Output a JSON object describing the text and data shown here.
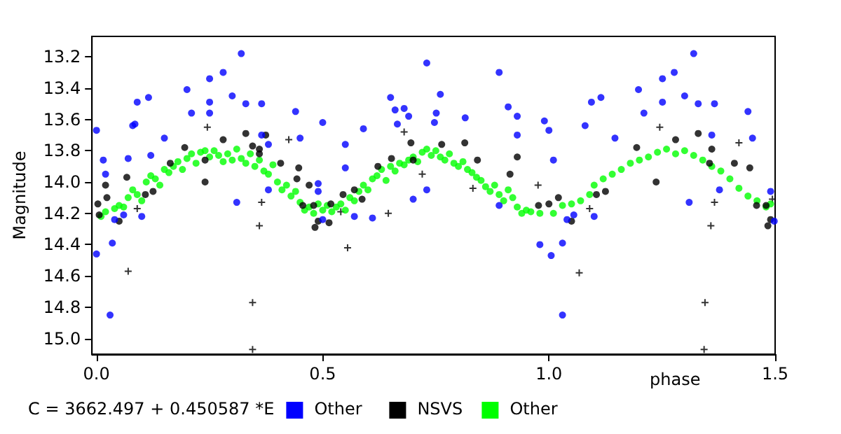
{
  "chart_data": {
    "type": "scatter",
    "xlabel": "phase",
    "ylabel": "Magnitude",
    "annotations": [
      "C = 3662.497 + 0.450587 *E"
    ],
    "xlim": [
      -0.01,
      1.5
    ],
    "ylim": [
      15.1,
      13.07
    ],
    "xticks": [
      {
        "value": 0,
        "label": "0.0"
      },
      {
        "value": 0.5,
        "label": "0.5"
      },
      {
        "value": 1,
        "label": "1.0"
      },
      {
        "value": 1.5,
        "label": "1.5"
      }
    ],
    "yticks": [
      {
        "value": 13.2,
        "label": "13.2"
      },
      {
        "value": 13.4,
        "label": "13.4"
      },
      {
        "value": 13.6,
        "label": "13.6"
      },
      {
        "value": 13.8,
        "label": "13.8"
      },
      {
        "value": 14.0,
        "label": "14.0"
      },
      {
        "value": 14.2,
        "label": "14.2"
      },
      {
        "value": 14.4,
        "label": "14.4"
      },
      {
        "value": 14.6,
        "label": "14.6"
      },
      {
        "value": 14.8,
        "label": "14.8"
      },
      {
        "value": 15.0,
        "label": "15.0"
      }
    ],
    "grid": false,
    "legend": "bottom",
    "marker": "circle",
    "series": [
      {
        "name": "Other",
        "color": "#0000ff",
        "x": [
          0.0,
          0.0,
          0.015,
          0.02,
          0.03,
          0.035,
          0.04,
          0.06,
          0.07,
          0.08,
          0.085,
          0.09,
          0.1,
          0.115,
          0.12,
          0.15,
          0.2,
          0.21,
          0.25,
          0.25,
          0.25,
          0.28,
          0.3,
          0.32,
          0.31,
          0.33,
          0.365,
          0.365,
          0.38,
          0.38,
          0.44,
          0.45,
          0.5,
          0.49,
          0.49,
          0.5,
          0.55,
          0.55,
          0.57,
          0.61,
          0.59,
          0.65,
          0.66,
          0.665,
          0.68,
          0.69,
          0.7,
          0.73,
          0.73,
          0.751,
          0.747,
          0.76,
          0.815,
          0.89,
          0.91,
          0.93,
          0.93,
          0.89,
          0.98,
          0.99,
          1.0,
          1.005,
          1.01,
          1.03,
          1.03,
          1.04,
          1.055,
          1.094,
          1.115,
          1.08,
          1.1,
          1.146,
          1.198,
          1.21,
          1.251,
          1.251,
          1.277,
          1.3,
          1.32,
          1.31,
          1.33,
          1.366,
          1.36,
          1.377,
          1.44,
          1.45,
          1.49,
          1.498
        ],
        "values": [
          13.67,
          14.46,
          13.86,
          13.95,
          14.85,
          14.39,
          14.24,
          14.21,
          13.85,
          13.64,
          13.63,
          13.49,
          14.22,
          13.46,
          13.83,
          13.72,
          13.41,
          13.56,
          13.34,
          13.49,
          13.56,
          13.3,
          13.45,
          13.18,
          14.13,
          13.5,
          13.5,
          13.7,
          13.76,
          14.05,
          13.55,
          13.72,
          13.62,
          14.01,
          14.06,
          14.24,
          13.76,
          13.91,
          14.22,
          14.23,
          13.66,
          13.46,
          13.54,
          13.63,
          13.53,
          13.58,
          14.11,
          13.24,
          14.05,
          13.56,
          13.62,
          13.44,
          13.59,
          13.3,
          13.52,
          13.58,
          13.7,
          14.15,
          14.4,
          13.61,
          13.67,
          14.47,
          13.86,
          14.39,
          14.85,
          14.24,
          14.21,
          13.49,
          13.46,
          13.64,
          14.22,
          13.72,
          13.41,
          13.56,
          13.34,
          13.49,
          13.3,
          13.45,
          13.18,
          14.13,
          13.5,
          13.5,
          13.7,
          14.05,
          13.55,
          13.72,
          14.06,
          14.25
        ]
      },
      {
        "name": "NSVS",
        "color": "#000000",
        "x": [
          0.003,
          0.006,
          0.023,
          0.02,
          0.05,
          0.067,
          0.108,
          0.125,
          0.163,
          0.195,
          0.24,
          0.24,
          0.28,
          0.33,
          0.345,
          0.36,
          0.36,
          0.374,
          0.407,
          0.447,
          0.443,
          0.456,
          0.47,
          0.48,
          0.483,
          0.49,
          0.514,
          0.518,
          0.545,
          0.57,
          0.587,
          0.622,
          0.652,
          0.695,
          0.7,
          0.763,
          0.814,
          0.842,
          0.914,
          0.93,
          0.977,
          1.0,
          1.021,
          1.05,
          1.105,
          1.125,
          1.194,
          1.237,
          1.28,
          1.33,
          1.36,
          1.355,
          1.41,
          1.444,
          1.459,
          1.48,
          1.484,
          1.49
        ],
        "values": [
          14.14,
          14.21,
          14.1,
          14.02,
          14.25,
          13.97,
          14.08,
          14.06,
          13.88,
          13.78,
          14.0,
          13.86,
          13.73,
          13.69,
          13.77,
          13.79,
          13.82,
          13.7,
          13.88,
          13.91,
          13.98,
          14.15,
          14.02,
          14.15,
          14.29,
          14.25,
          14.26,
          14.14,
          14.08,
          14.05,
          14.11,
          13.9,
          13.85,
          13.75,
          13.86,
          13.76,
          13.75,
          13.86,
          13.95,
          13.84,
          14.15,
          14.14,
          14.1,
          14.25,
          14.08,
          14.06,
          13.78,
          14.0,
          13.73,
          13.69,
          13.79,
          13.88,
          13.88,
          13.91,
          14.15,
          14.15,
          14.28,
          14.24
        ]
      },
      {
        "name": "Other",
        "color": "#00ff00",
        "x": [
          0.01,
          0.02,
          0.04,
          0.05,
          0.06,
          0.07,
          0.08,
          0.09,
          0.1,
          0.11,
          0.12,
          0.13,
          0.14,
          0.15,
          0.16,
          0.17,
          0.18,
          0.19,
          0.2,
          0.21,
          0.22,
          0.23,
          0.24,
          0.25,
          0.26,
          0.27,
          0.28,
          0.29,
          0.3,
          0.31,
          0.32,
          0.33,
          0.34,
          0.35,
          0.36,
          0.37,
          0.38,
          0.39,
          0.4,
          0.41,
          0.42,
          0.43,
          0.44,
          0.45,
          0.46,
          0.47,
          0.48,
          0.49,
          0.5,
          0.51,
          0.52,
          0.53,
          0.54,
          0.55,
          0.56,
          0.57,
          0.58,
          0.59,
          0.6,
          0.61,
          0.62,
          0.63,
          0.64,
          0.65,
          0.66,
          0.67,
          0.68,
          0.69,
          0.7,
          0.71,
          0.72,
          0.73,
          0.74,
          0.75,
          0.76,
          0.77,
          0.78,
          0.79,
          0.8,
          0.81,
          0.82,
          0.83,
          0.84,
          0.85,
          0.86,
          0.87,
          0.88,
          0.89,
          0.9,
          0.91,
          0.92,
          0.93,
          0.94,
          0.95,
          0.96,
          0.98,
          1.01,
          1.03,
          1.05,
          1.07,
          1.09,
          1.1,
          1.12,
          1.14,
          1.16,
          1.18,
          1.2,
          1.22,
          1.24,
          1.26,
          1.28,
          1.3,
          1.32,
          1.34,
          1.36,
          1.38,
          1.4,
          1.42,
          1.44,
          1.46,
          1.48,
          1.49
        ],
        "values": [
          14.22,
          14.19,
          14.17,
          14.15,
          14.16,
          14.1,
          14.05,
          14.08,
          14.12,
          14.0,
          13.96,
          13.98,
          14.02,
          13.92,
          13.94,
          13.9,
          13.87,
          13.92,
          13.85,
          13.82,
          13.88,
          13.81,
          13.8,
          13.84,
          13.8,
          13.83,
          13.87,
          13.82,
          13.86,
          13.79,
          13.85,
          13.88,
          13.82,
          13.9,
          13.86,
          13.93,
          13.95,
          13.89,
          14.0,
          14.05,
          14.02,
          14.09,
          14.06,
          14.13,
          14.18,
          14.16,
          14.2,
          14.14,
          14.18,
          14.15,
          14.19,
          14.16,
          14.14,
          14.18,
          14.1,
          14.12,
          14.06,
          14.02,
          14.05,
          13.98,
          13.96,
          13.92,
          13.99,
          13.9,
          13.93,
          13.88,
          13.89,
          13.86,
          13.84,
          13.87,
          13.81,
          13.79,
          13.83,
          13.8,
          13.84,
          13.86,
          13.82,
          13.88,
          13.9,
          13.87,
          13.92,
          13.94,
          13.97,
          13.99,
          14.03,
          14.06,
          14.02,
          14.08,
          14.12,
          14.05,
          14.1,
          14.16,
          14.2,
          14.18,
          14.19,
          14.2,
          14.2,
          14.15,
          14.14,
          14.12,
          14.08,
          14.02,
          13.98,
          13.95,
          13.92,
          13.88,
          13.86,
          13.84,
          13.81,
          13.79,
          13.82,
          13.8,
          13.83,
          13.86,
          13.9,
          13.93,
          13.98,
          14.04,
          14.09,
          14.12,
          14.16,
          14.14
        ]
      },
      {
        "color": "#000000",
        "marker": "cross",
        "x": [
          0.07,
          0.09,
          0.245,
          0.345,
          0.345,
          0.36,
          0.365,
          0.425,
          0.54,
          0.555,
          0.645,
          0.68,
          0.72,
          0.832,
          0.976,
          1.067,
          1.09,
          1.245,
          1.345,
          1.343,
          1.358,
          1.366,
          1.42,
          1.494
        ],
        "values": [
          14.57,
          14.17,
          13.65,
          14.77,
          15.07,
          14.28,
          14.13,
          13.73,
          14.19,
          14.42,
          14.2,
          13.68,
          13.95,
          14.04,
          14.02,
          14.58,
          14.17,
          13.65,
          14.77,
          15.07,
          14.28,
          14.13,
          13.75,
          14.11
        ]
      }
    ]
  }
}
